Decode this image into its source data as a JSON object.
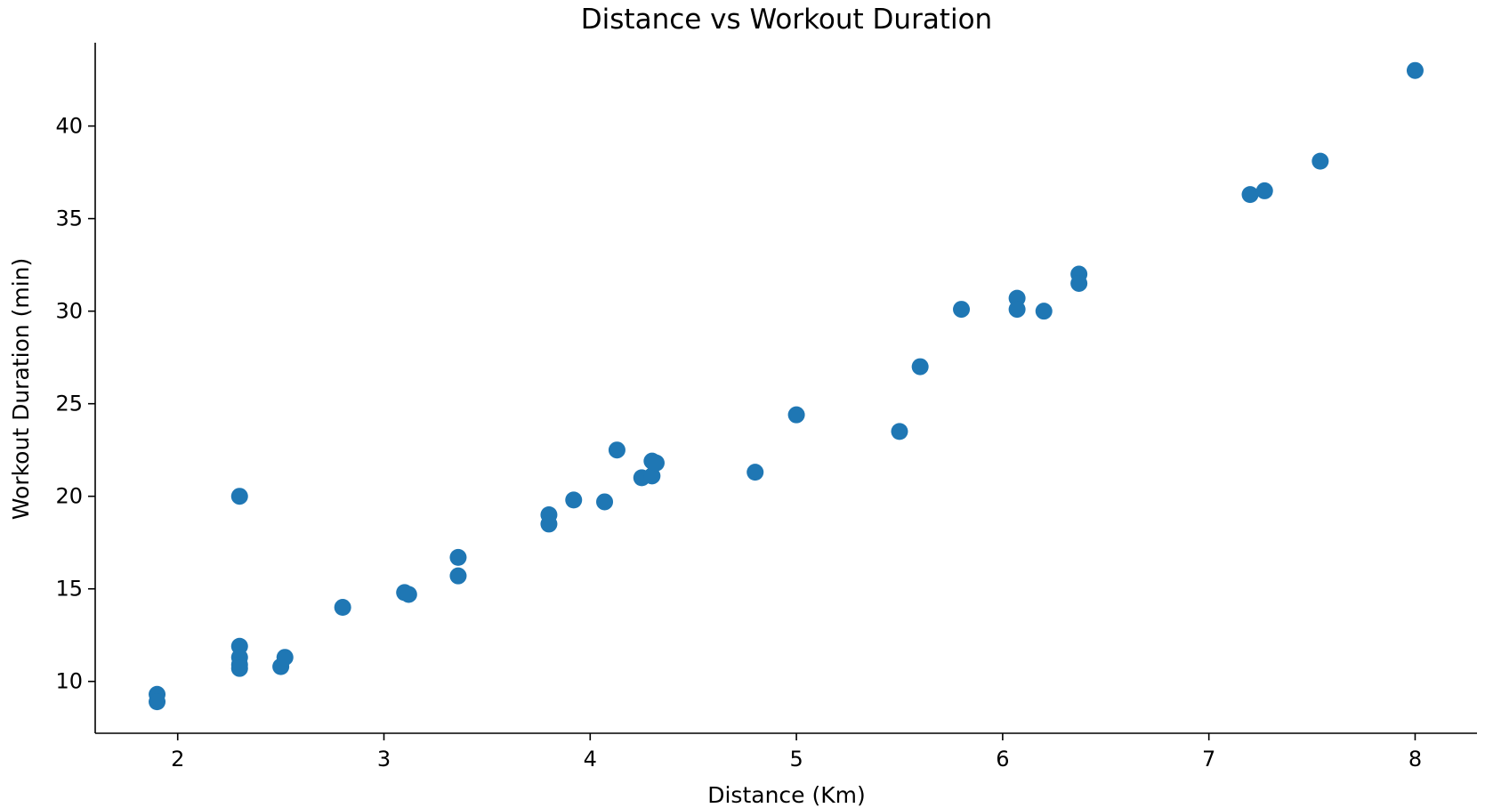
{
  "chart_data": {
    "type": "scatter",
    "title": "Distance vs Workout Duration",
    "xlabel": "Distance (Km)",
    "ylabel": "Workout Duration (min)",
    "xlim": [
      1.6,
      8.3
    ],
    "ylim": [
      7.2,
      44.5
    ],
    "xticks": [
      2,
      3,
      4,
      5,
      6,
      7,
      8
    ],
    "yticks": [
      10,
      15,
      20,
      25,
      30,
      35,
      40
    ],
    "grid": false,
    "legend": "none",
    "marker_color": "#1f77b4",
    "points": [
      {
        "x": 1.9,
        "y": 9.3
      },
      {
        "x": 1.9,
        "y": 8.9
      },
      {
        "x": 2.3,
        "y": 20.0
      },
      {
        "x": 2.3,
        "y": 11.9
      },
      {
        "x": 2.3,
        "y": 11.3
      },
      {
        "x": 2.3,
        "y": 10.9
      },
      {
        "x": 2.3,
        "y": 10.7
      },
      {
        "x": 2.5,
        "y": 10.8
      },
      {
        "x": 2.52,
        "y": 11.3
      },
      {
        "x": 2.8,
        "y": 14.0
      },
      {
        "x": 3.1,
        "y": 14.8
      },
      {
        "x": 3.12,
        "y": 14.7
      },
      {
        "x": 3.36,
        "y": 16.7
      },
      {
        "x": 3.36,
        "y": 15.7
      },
      {
        "x": 3.8,
        "y": 19.0
      },
      {
        "x": 3.8,
        "y": 18.5
      },
      {
        "x": 3.92,
        "y": 19.8
      },
      {
        "x": 4.07,
        "y": 19.7
      },
      {
        "x": 4.13,
        "y": 22.5
      },
      {
        "x": 4.25,
        "y": 21.0
      },
      {
        "x": 4.3,
        "y": 21.9
      },
      {
        "x": 4.3,
        "y": 21.1
      },
      {
        "x": 4.32,
        "y": 21.8
      },
      {
        "x": 4.8,
        "y": 21.3
      },
      {
        "x": 5.0,
        "y": 24.4
      },
      {
        "x": 5.5,
        "y": 23.5
      },
      {
        "x": 5.6,
        "y": 27.0
      },
      {
        "x": 5.8,
        "y": 30.1
      },
      {
        "x": 6.07,
        "y": 30.7
      },
      {
        "x": 6.07,
        "y": 30.1
      },
      {
        "x": 6.2,
        "y": 30.0
      },
      {
        "x": 6.37,
        "y": 32.0
      },
      {
        "x": 6.37,
        "y": 31.5
      },
      {
        "x": 7.2,
        "y": 36.3
      },
      {
        "x": 7.27,
        "y": 36.5
      },
      {
        "x": 7.54,
        "y": 38.1
      },
      {
        "x": 8.0,
        "y": 43.0
      }
    ]
  }
}
